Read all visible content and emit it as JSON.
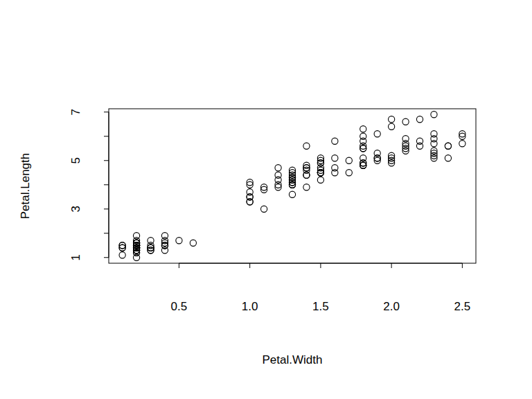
{
  "chart_data": {
    "type": "scatter",
    "x_label": "Petal.Width",
    "y_label": "Petal.Length",
    "color": "#000000",
    "marker": "circle",
    "xlim": [
      0.004,
      2.596
    ],
    "ylim": [
      0.764,
      7.136
    ],
    "xticks": [
      0.5,
      1.0,
      1.5,
      2.0,
      2.5
    ],
    "yticks": [
      1,
      {
        "value": 2,
        "label": null
      },
      3,
      {
        "value": 4,
        "label": null
      },
      5,
      {
        "value": 6,
        "label": null
      },
      7
    ],
    "x": [
      0.2,
      0.2,
      0.2,
      0.2,
      0.2,
      0.4,
      0.3,
      0.2,
      0.2,
      0.1,
      0.2,
      0.2,
      0.1,
      0.1,
      0.2,
      0.4,
      0.4,
      0.3,
      0.3,
      0.3,
      0.2,
      0.4,
      0.2,
      0.5,
      0.2,
      0.2,
      0.4,
      0.2,
      0.2,
      0.2,
      0.2,
      0.4,
      0.1,
      0.2,
      0.2,
      0.2,
      0.2,
      0.1,
      0.2,
      0.2,
      0.3,
      0.3,
      0.2,
      0.6,
      0.4,
      0.3,
      0.2,
      0.2,
      0.2,
      0.2,
      1.4,
      1.5,
      1.5,
      1.3,
      1.5,
      1.3,
      1.6,
      1.0,
      1.3,
      1.4,
      1.0,
      1.5,
      1.0,
      1.4,
      1.3,
      1.4,
      1.5,
      1.0,
      1.5,
      1.1,
      1.8,
      1.3,
      1.5,
      1.2,
      1.3,
      1.4,
      1.4,
      1.7,
      1.5,
      1.0,
      1.1,
      1.0,
      1.2,
      1.6,
      1.5,
      1.6,
      1.5,
      1.3,
      1.3,
      1.3,
      1.2,
      1.4,
      1.2,
      1.0,
      1.3,
      1.2,
      1.3,
      1.3,
      1.1,
      1.3,
      2.5,
      1.9,
      2.1,
      1.8,
      2.2,
      2.1,
      1.7,
      1.8,
      1.8,
      2.5,
      2.0,
      1.9,
      2.1,
      2.0,
      2.4,
      2.3,
      1.8,
      2.2,
      2.3,
      1.5,
      2.3,
      2.0,
      2.0,
      1.8,
      2.1,
      1.8,
      1.8,
      1.8,
      2.1,
      1.6,
      1.9,
      2.0,
      2.2,
      1.5,
      1.4,
      2.3,
      2.4,
      1.8,
      1.8,
      2.1,
      2.4,
      2.3,
      1.9,
      2.3,
      2.5,
      2.3,
      1.9,
      2.0,
      2.3,
      1.8
    ],
    "values": [
      1.4,
      1.4,
      1.3,
      1.5,
      1.4,
      1.7,
      1.4,
      1.5,
      1.4,
      1.5,
      1.5,
      1.6,
      1.4,
      1.1,
      1.2,
      1.5,
      1.3,
      1.4,
      1.7,
      1.5,
      1.7,
      1.5,
      1.0,
      1.7,
      1.9,
      1.6,
      1.6,
      1.5,
      1.4,
      1.6,
      1.6,
      1.5,
      1.5,
      1.4,
      1.5,
      1.2,
      1.3,
      1.4,
      1.3,
      1.5,
      1.3,
      1.3,
      1.3,
      1.6,
      1.9,
      1.4,
      1.6,
      1.4,
      1.5,
      1.4,
      4.7,
      4.5,
      4.9,
      4.0,
      4.6,
      4.5,
      4.7,
      3.3,
      4.6,
      3.9,
      3.5,
      4.2,
      4.0,
      4.7,
      3.6,
      4.4,
      4.5,
      4.1,
      4.5,
      3.9,
      4.8,
      4.0,
      4.9,
      4.7,
      4.3,
      4.4,
      4.8,
      5.0,
      4.5,
      3.5,
      3.8,
      3.7,
      3.9,
      5.1,
      4.5,
      4.5,
      4.7,
      4.4,
      4.1,
      4.0,
      4.4,
      4.6,
      4.0,
      3.3,
      4.2,
      4.2,
      4.2,
      4.3,
      3.0,
      4.1,
      6.0,
      5.1,
      5.9,
      5.6,
      5.8,
      6.6,
      4.5,
      6.3,
      5.8,
      6.1,
      5.1,
      5.3,
      5.5,
      5.0,
      5.1,
      5.3,
      5.5,
      6.7,
      6.9,
      5.0,
      5.7,
      4.9,
      6.7,
      4.9,
      5.7,
      6.0,
      4.8,
      4.9,
      5.6,
      5.8,
      6.1,
      6.4,
      5.6,
      5.1,
      5.6,
      6.1,
      5.6,
      5.5,
      4.8,
      5.4,
      5.6,
      5.1,
      5.1,
      5.9,
      5.7,
      5.2,
      5.0,
      5.2,
      5.4,
      5.1
    ]
  }
}
